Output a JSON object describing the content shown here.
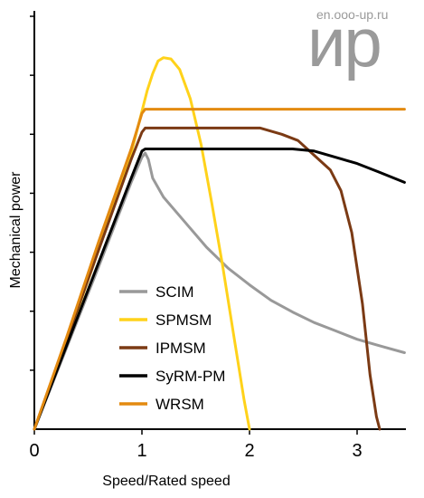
{
  "watermark": {
    "url": "en.ooo-up.ru",
    "logo": "ир"
  },
  "chart_data": {
    "type": "line",
    "title": "",
    "xlabel": "Speed/Rated speed",
    "ylabel": "Mechanical power",
    "xlim": [
      0,
      3.5
    ],
    "ylim": [
      0,
      1.0
    ],
    "xticks": [
      0,
      1,
      2,
      3
    ],
    "yticks_count": 7,
    "grid": false,
    "legend": "lower-left",
    "series": [
      {
        "name": "SCIM",
        "color": "#999999",
        "x": [
          0,
          0.3,
          0.6,
          0.9,
          1.0,
          1.03,
          1.06,
          1.1,
          1.2,
          1.4,
          1.6,
          1.8,
          2.0,
          2.2,
          2.4,
          2.6,
          2.8,
          3.0,
          3.2,
          3.44
        ],
        "y": [
          0,
          0.195,
          0.39,
          0.59,
          0.65,
          0.66,
          0.645,
          0.6,
          0.555,
          0.495,
          0.435,
          0.385,
          0.345,
          0.308,
          0.28,
          0.255,
          0.235,
          0.215,
          0.2,
          0.183
        ]
      },
      {
        "name": "SPMSM",
        "color": "#FFD21A",
        "x": [
          0,
          0.3,
          0.6,
          0.9,
          1.0,
          1.05,
          1.1,
          1.15,
          1.2,
          1.27,
          1.35,
          1.45,
          1.55,
          1.65,
          1.75,
          1.85,
          1.95,
          2.0
        ],
        "y": [
          0,
          0.21,
          0.43,
          0.66,
          0.76,
          0.81,
          0.85,
          0.88,
          0.888,
          0.885,
          0.86,
          0.79,
          0.68,
          0.54,
          0.39,
          0.23,
          0.07,
          0
        ]
      },
      {
        "name": "IPMSM",
        "color": "#7B3A14",
        "x": [
          0,
          0.3,
          0.6,
          0.9,
          1.0,
          1.03,
          1.1,
          1.5,
          1.9,
          2.1,
          2.3,
          2.45,
          2.6,
          2.75,
          2.85,
          2.95,
          3.05,
          3.12,
          3.18,
          3.21
        ],
        "y": [
          0,
          0.215,
          0.43,
          0.645,
          0.71,
          0.72,
          0.72,
          0.72,
          0.72,
          0.72,
          0.705,
          0.69,
          0.655,
          0.62,
          0.57,
          0.47,
          0.3,
          0.13,
          0.03,
          0
        ]
      },
      {
        "name": "SyRM-PM",
        "color": "#000000",
        "x": [
          0,
          0.3,
          0.6,
          0.9,
          1.0,
          1.03,
          1.1,
          1.5,
          2.0,
          2.4,
          2.6,
          2.8,
          3.0,
          3.2,
          3.44
        ],
        "y": [
          0,
          0.2,
          0.4,
          0.6,
          0.665,
          0.67,
          0.67,
          0.67,
          0.67,
          0.67,
          0.665,
          0.65,
          0.635,
          0.615,
          0.59
        ]
      },
      {
        "name": "WRSM",
        "color": "#E38A10",
        "x": [
          0,
          0.3,
          0.6,
          0.9,
          1.0,
          1.03,
          1.1,
          1.5,
          2.0,
          2.5,
          3.0,
          3.44
        ],
        "y": [
          0,
          0.22,
          0.45,
          0.67,
          0.755,
          0.765,
          0.765,
          0.765,
          0.765,
          0.765,
          0.765,
          0.765
        ]
      }
    ]
  }
}
